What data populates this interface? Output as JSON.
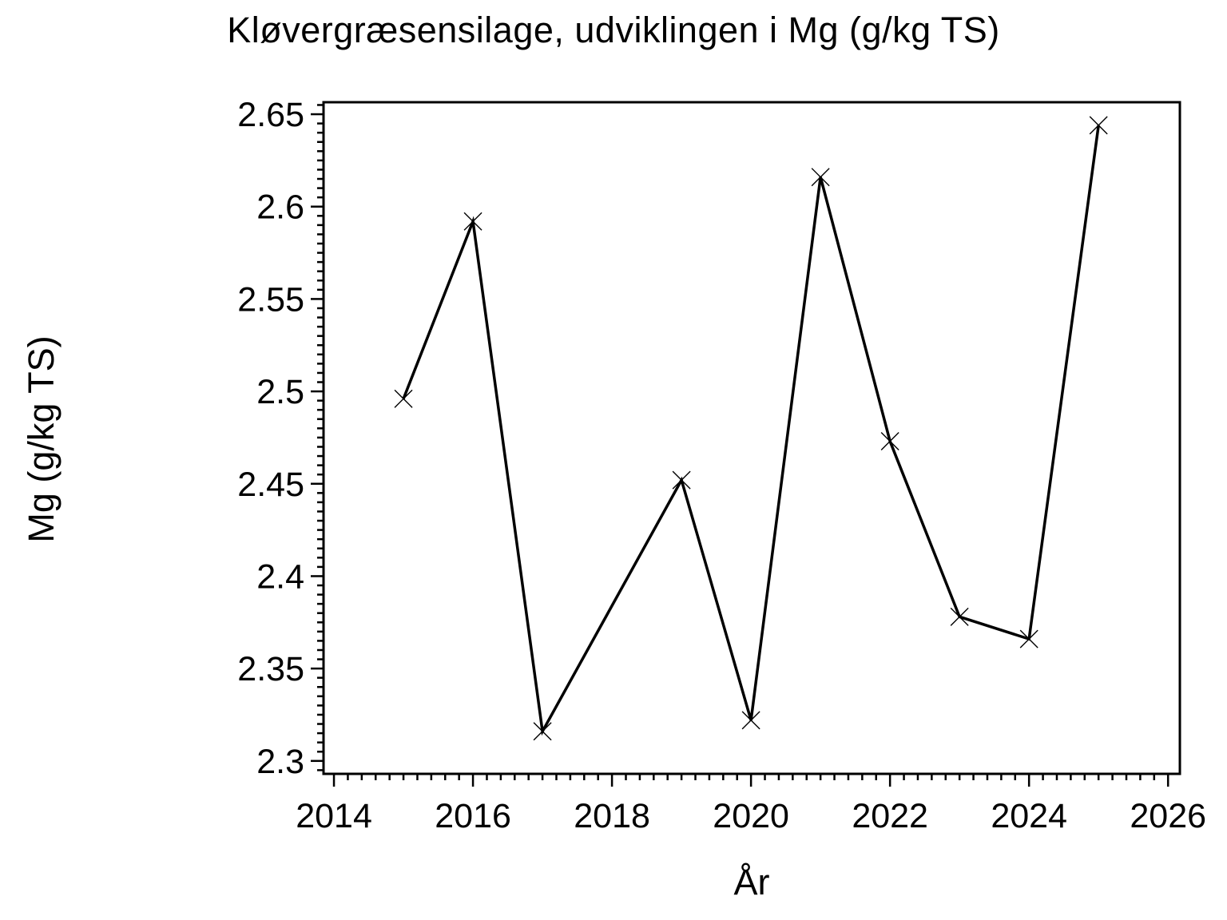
{
  "chart_data": {
    "type": "line",
    "title": "Kløvergræsensilage, udviklingen i Mg (g/kg TS)",
    "xlabel": "År",
    "ylabel": "Mg (g/kg TS)",
    "x": [
      2015,
      2016,
      2017,
      2019,
      2020,
      2021,
      2022,
      2023,
      2024,
      2025
    ],
    "y": [
      2.496,
      2.592,
      2.316,
      2.452,
      2.322,
      2.616,
      2.473,
      2.378,
      2.366,
      2.644
    ],
    "marker": "x",
    "xlim": [
      2013.85,
      2026.17
    ],
    "ylim": [
      2.293,
      2.6565
    ],
    "x_major_ticks": [
      2014,
      2016,
      2018,
      2020,
      2022,
      2024,
      2026
    ],
    "x_tick_labels": [
      "2014",
      "2016",
      "2018",
      "2020",
      "2022",
      "2024",
      "2026"
    ],
    "x_minor_step": 0.2,
    "y_major_ticks": [
      2.3,
      2.35,
      2.4,
      2.45,
      2.5,
      2.55,
      2.6,
      2.65
    ],
    "y_tick_labels": [
      "2.3",
      "2.35",
      "2.4",
      "2.45",
      "2.5",
      "2.55",
      "2.6",
      "2.65"
    ],
    "y_minor_step": 0.005,
    "grid": false,
    "legend": false,
    "line_color": "#000000",
    "background_color": "#ffffff"
  }
}
